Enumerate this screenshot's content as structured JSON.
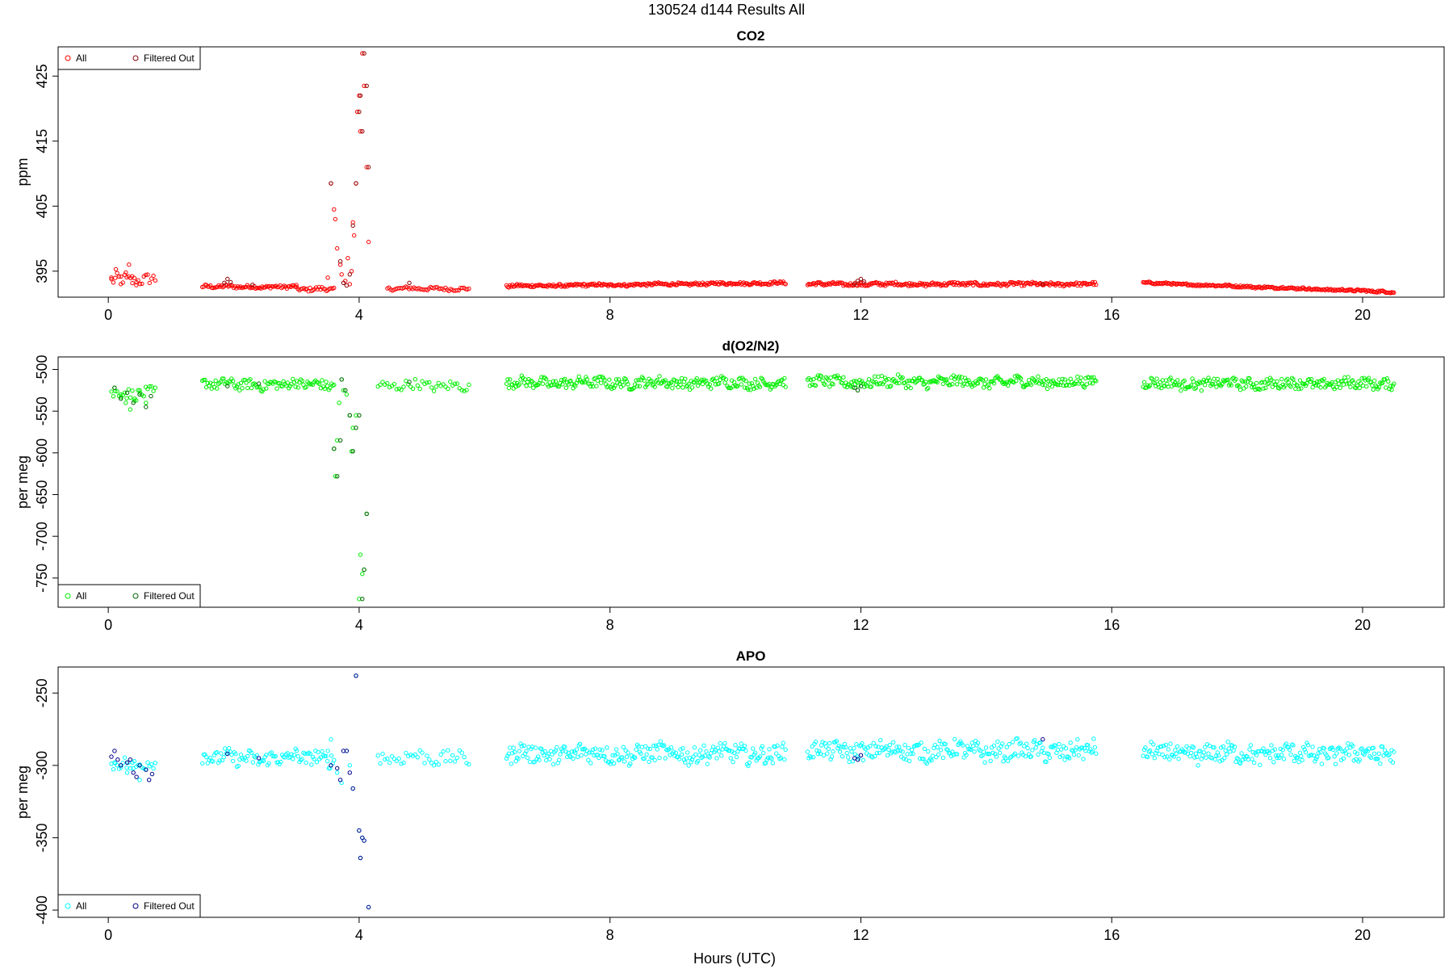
{
  "figure": {
    "title": "130524   d144   Results All",
    "xlabel": "Hours (UTC)"
  },
  "chart_data": [
    {
      "type": "scatter",
      "title": "CO2",
      "xlabel": "",
      "ylabel": "ppm",
      "xlim": [
        -0.8,
        21.3
      ],
      "ylim": [
        391,
        429.5
      ],
      "x_ticks": [
        0,
        4,
        8,
        12,
        16,
        20
      ],
      "y_ticks": [
        395,
        405,
        415,
        425
      ],
      "legend": {
        "position": "top-left",
        "entries": [
          "All",
          "Filtered Out"
        ]
      },
      "colors": {
        "all": "#ff0000",
        "filtered": "#000000"
      },
      "segments": [
        {
          "x": [
            0.05,
            0.75
          ],
          "level": 393.5,
          "var": 0.9,
          "n": 24
        },
        {
          "x": [
            1.5,
            3.0
          ],
          "level": 392.6,
          "var": 0.25,
          "n": 70
        },
        {
          "x": [
            3.0,
            3.6
          ],
          "level": 392.2,
          "var": 0.3,
          "n": 26
        },
        {
          "x": [
            4.45,
            5.75
          ],
          "level": 392.3,
          "var": 0.25,
          "n": 50
        },
        {
          "x": [
            6.35,
            10.8
          ],
          "level": 392.7,
          "var": 0.2,
          "n": 240,
          "trend": 0.5
        },
        {
          "x": [
            11.15,
            15.75
          ],
          "level": 393.0,
          "var": 0.25,
          "n": 250
        },
        {
          "x": [
            16.5,
            20.5
          ],
          "level": 393.2,
          "var": 0.15,
          "n": 220,
          "trend": -1.4
        }
      ],
      "series": [
        {
          "name": "All",
          "color": "#ff0000",
          "x": [
            0.05,
            0.12,
            0.2,
            0.28,
            0.33,
            0.38,
            0.45,
            3.5,
            3.55,
            3.6,
            3.62,
            3.65,
            3.7,
            3.72,
            3.78,
            3.82,
            3.85,
            3.88,
            3.9,
            3.92,
            3.95,
            3.97,
            4.0,
            4.02,
            4.05,
            4.08,
            4.12,
            4.15
          ],
          "y": [
            394.0,
            395.3,
            393.0,
            394.8,
            396.0,
            394.2,
            393.3,
            394.0,
            408.5,
            404.5,
            403.0,
            398.5,
            396.0,
            394.5,
            393.5,
            397.0,
            393.0,
            395.0,
            402.5,
            400.5,
            408.5,
            419.5,
            422.0,
            416.5,
            428.5,
            423.5,
            411.0,
            399.5
          ]
        },
        {
          "name": "Filtered Out",
          "color": "#000000",
          "x": [
            1.85,
            1.9,
            1.95,
            2.3,
            3.55,
            3.7,
            3.75,
            3.8,
            3.85,
            3.9,
            3.95,
            4.0,
            4.02,
            4.05,
            4.08,
            4.12,
            4.15,
            4.8,
            11.9,
            11.95,
            12.0,
            12.05,
            14.9
          ],
          "y": [
            393.2,
            393.8,
            393.3,
            392.9,
            408.5,
            396.5,
            393.2,
            392.8,
            394.5,
            402.0,
            408.5,
            419.5,
            422.0,
            416.5,
            428.5,
            423.5,
            411.0,
            393.2,
            393.0,
            393.5,
            393.8,
            393.4,
            393.0
          ]
        }
      ]
    },
    {
      "type": "scatter",
      "title": "d(O2/N2)",
      "xlabel": "",
      "ylabel": "per meg",
      "xlim": [
        -0.8,
        21.3
      ],
      "ylim": [
        -785,
        -485
      ],
      "x_ticks": [
        0,
        4,
        8,
        12,
        16,
        20
      ],
      "y_ticks": [
        -500,
        -550,
        -600,
        -650,
        -700,
        -750
      ],
      "legend": {
        "position": "bottom-left",
        "entries": [
          "All",
          "Filtered Out"
        ]
      },
      "colors": {
        "all": "#00ee00",
        "filtered": "#006400"
      },
      "segments": [
        {
          "x": [
            0.05,
            0.75
          ],
          "level": -530,
          "var": 7,
          "n": 24
        },
        {
          "x": [
            1.5,
            3.6
          ],
          "level": -518,
          "var": 6,
          "n": 100
        },
        {
          "x": [
            4.3,
            5.75
          ],
          "level": -520,
          "var": 6,
          "n": 40
        },
        {
          "x": [
            6.35,
            10.8
          ],
          "level": -516,
          "var": 6,
          "n": 240
        },
        {
          "x": [
            11.15,
            15.75
          ],
          "level": -515,
          "var": 6,
          "n": 250
        },
        {
          "x": [
            16.5,
            20.5
          ],
          "level": -517,
          "var": 6,
          "n": 220
        }
      ],
      "series": [
        {
          "name": "All",
          "color": "#00ee00",
          "x": [
            0.1,
            0.2,
            0.28,
            0.35,
            0.42,
            0.5,
            0.6,
            3.6,
            3.62,
            3.65,
            3.68,
            3.72,
            3.75,
            3.8,
            3.85,
            3.88,
            3.9,
            3.95,
            4.0,
            4.02,
            4.05,
            4.08,
            4.12
          ],
          "y": [
            -522,
            -530,
            -540,
            -548,
            -535,
            -525,
            -540,
            -595,
            -628,
            -585,
            -540,
            -512,
            -525,
            -530,
            -555,
            -598,
            -570,
            -555,
            -775,
            -722,
            -745,
            -740,
            -673
          ]
        },
        {
          "name": "Filtered Out",
          "color": "#006400",
          "x": [
            0.1,
            0.2,
            0.3,
            0.4,
            0.5,
            0.6,
            0.68,
            1.9,
            2.4,
            3.6,
            3.65,
            3.7,
            3.72,
            3.78,
            3.85,
            3.9,
            3.95,
            4.0,
            4.05,
            4.08,
            4.12,
            4.8,
            11.9,
            11.95,
            12.0
          ],
          "y": [
            -522,
            -535,
            -528,
            -540,
            -530,
            -545,
            -532,
            -520,
            -517,
            -595,
            -628,
            -585,
            -512,
            -525,
            -555,
            -598,
            -570,
            -555,
            -775,
            -740,
            -673,
            -515,
            -522,
            -525,
            -520
          ]
        }
      ]
    },
    {
      "type": "scatter",
      "title": "APO",
      "xlabel": "Hours (UTC)",
      "ylabel": "per meg",
      "xlim": [
        -0.8,
        21.3
      ],
      "ylim": [
        -405,
        -232
      ],
      "x_ticks": [
        0,
        4,
        8,
        12,
        16,
        20
      ],
      "y_ticks": [
        -250,
        -300,
        -350,
        -400
      ],
      "legend": {
        "position": "bottom-left",
        "entries": [
          "All",
          "Filtered Out"
        ]
      },
      "colors": {
        "all": "#00ffff",
        "filtered": "#00008b"
      },
      "segments": [
        {
          "x": [
            0.05,
            0.75
          ],
          "level": -300,
          "var": 5,
          "n": 24
        },
        {
          "x": [
            1.5,
            3.6
          ],
          "level": -295,
          "var": 5,
          "n": 100
        },
        {
          "x": [
            4.3,
            5.75
          ],
          "level": -295,
          "var": 5,
          "n": 40
        },
        {
          "x": [
            6.35,
            10.8
          ],
          "level": -292,
          "var": 6,
          "n": 240
        },
        {
          "x": [
            11.15,
            15.75
          ],
          "level": -290,
          "var": 6,
          "n": 250
        },
        {
          "x": [
            16.5,
            20.5
          ],
          "level": -292,
          "var": 6,
          "n": 220
        }
      ],
      "series": [
        {
          "name": "All",
          "color": "#00ffff",
          "x": [
            0.1,
            0.2,
            0.3,
            0.4,
            0.5,
            3.5,
            3.55,
            3.65,
            3.72,
            3.8,
            3.85,
            3.9,
            3.95,
            4.0,
            4.02,
            4.05,
            4.08,
            4.15
          ],
          "y": [
            -298,
            -300,
            -305,
            -302,
            -310,
            -290,
            -282,
            -305,
            -312,
            -290,
            -300,
            -316,
            -238,
            -345,
            -364,
            -350,
            -352,
            -398
          ]
        },
        {
          "name": "Filtered Out",
          "color": "#00008b",
          "x": [
            0.05,
            0.1,
            0.15,
            0.2,
            0.3,
            0.35,
            0.4,
            0.45,
            0.5,
            0.6,
            0.65,
            0.7,
            1.9,
            2.4,
            3.55,
            3.65,
            3.7,
            3.75,
            3.8,
            3.85,
            3.9,
            3.95,
            4.0,
            4.02,
            4.05,
            4.08,
            4.15,
            11.9,
            11.95,
            12.0,
            14.9
          ],
          "y": [
            -294,
            -290,
            -296,
            -300,
            -298,
            -296,
            -305,
            -308,
            -300,
            -303,
            -310,
            -306,
            -292,
            -295,
            -300,
            -302,
            -310,
            -290,
            -290,
            -305,
            -316,
            -238,
            -345,
            -364,
            -350,
            -352,
            -398,
            -295,
            -296,
            -293,
            -282
          ]
        }
      ]
    }
  ]
}
